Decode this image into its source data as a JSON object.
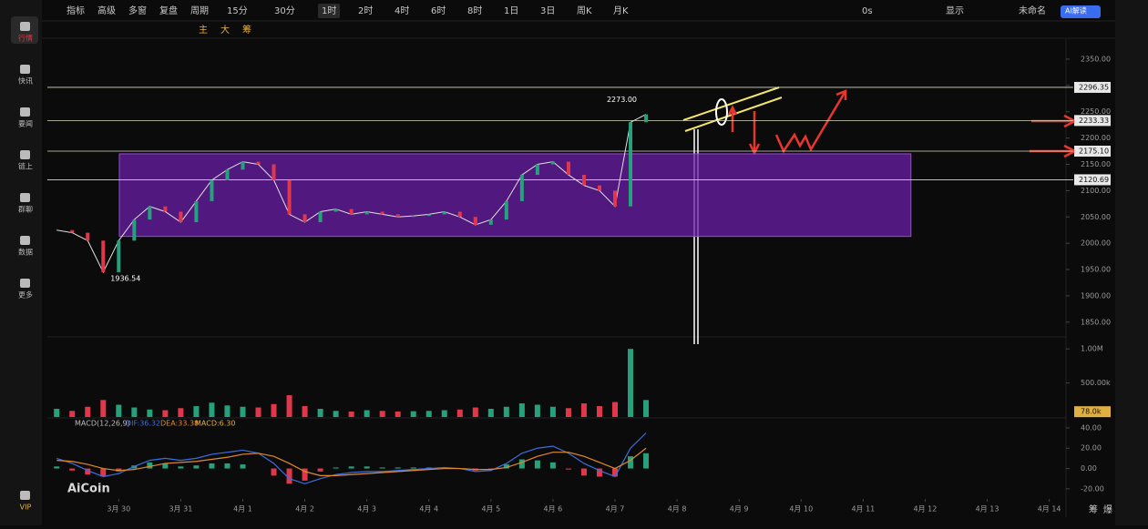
{
  "sidebar": [
    "行情",
    "快讯",
    "要闻",
    "链上",
    "群聊",
    "数据",
    "更多",
    "VIP"
  ],
  "toolbar": {
    "left": [
      "指标",
      "高级",
      "多窗",
      "复盘",
      "周期",
      "15分",
      "30分",
      "1时",
      "2时",
      "4时",
      "6时",
      "8时",
      "1日",
      "3日",
      "周K",
      "月K"
    ],
    "right": [
      "0s",
      "显示",
      "未命名",
      "AI解读"
    ]
  },
  "drawing_tools": [
    "主",
    "大",
    "筹"
  ],
  "watermark": "AiCoin",
  "bottom_right": [
    "筹",
    "爆"
  ],
  "chart_data": [
    {
      "type": "line",
      "color": "#e0e0e0",
      "up_color": "#26a17b",
      "down_color": "#e0384a",
      "x": [
        -1,
        -0.75,
        -0.5,
        -0.25,
        0,
        0.25,
        0.5,
        0.75,
        1,
        1.25,
        1.5,
        1.75,
        2,
        2.25,
        2.5,
        2.75,
        3,
        3.25,
        3.5,
        3.75,
        4,
        4.25,
        4.5,
        4.75,
        5,
        5.25,
        5.5,
        5.75,
        6,
        6.25,
        6.5,
        6.75,
        7,
        7.25,
        7.5,
        7.75,
        8,
        8.25,
        8.5
      ],
      "values": [
        2025,
        2020,
        2005,
        1945,
        2005,
        2045,
        2070,
        2060,
        2040,
        2080,
        2120,
        2140,
        2155,
        2150,
        2120,
        2055,
        2040,
        2060,
        2065,
        2055,
        2060,
        2055,
        2050,
        2052,
        2055,
        2060,
        2050,
        2035,
        2045,
        2080,
        2130,
        2150,
        2155,
        2130,
        2110,
        2100,
        2070,
        2230,
        2245
      ],
      "xlim": [
        -1.15,
        15.27
      ],
      "ylim": [
        1822,
        2388
      ],
      "xticks": [
        {
          "value": 0,
          "label": "3月 30"
        },
        {
          "value": 1,
          "label": "3月 31"
        },
        {
          "value": 2,
          "label": "4月 1"
        },
        {
          "value": 3,
          "label": "4月 2"
        },
        {
          "value": 4,
          "label": "4月 3"
        },
        {
          "value": 5,
          "label": "4月 4"
        },
        {
          "value": 6,
          "label": "4月 5"
        },
        {
          "value": 7,
          "label": "4月 6"
        },
        {
          "value": 8,
          "label": "4月 7"
        },
        {
          "value": 9,
          "label": "4月 8"
        },
        {
          "value": 10,
          "label": "4月 9"
        },
        {
          "value": 11,
          "label": "4月 10"
        },
        {
          "value": 12,
          "label": "4月 11"
        },
        {
          "value": 13,
          "label": "4月 12"
        },
        {
          "value": 14,
          "label": "4月 13"
        },
        {
          "value": 15,
          "label": "4月 14"
        }
      ],
      "yticks": [
        {
          "value": 1850,
          "label": "1850.00"
        },
        {
          "value": 1900,
          "label": "1900.00"
        },
        {
          "value": 1950,
          "label": "1950.00"
        },
        {
          "value": 2000,
          "label": "2000.00"
        },
        {
          "value": 2050,
          "label": "2050.00"
        },
        {
          "value": 2100,
          "label": "2100.00"
        },
        {
          "value": 2150,
          "label": "2150.00"
        },
        {
          "value": 2200,
          "label": "2200.00"
        },
        {
          "value": 2250,
          "label": "2250.00"
        },
        {
          "value": 2300,
          "label": "2300.00"
        },
        {
          "value": 2350,
          "label": "2350.00"
        }
      ],
      "levels": [
        {
          "value": 2296.35,
          "label": "2296.35"
        },
        {
          "value": 2233.33,
          "label": "2233.33"
        },
        {
          "value": 2175.1,
          "label": "2175.10"
        },
        {
          "value": 2120.69,
          "label": "2120.69"
        }
      ],
      "high": {
        "value": 2273.0,
        "label": "2273.00"
      },
      "low": {
        "value": 1936.54,
        "label": "1936.54"
      },
      "range_box": {
        "xlim": [
          0.01,
          12.77
        ],
        "ylim": [
          2013,
          2170
        ],
        "color": "#6a1fa8"
      }
    },
    {
      "type": "bar",
      "values": [
        120000,
        90000,
        150000,
        250000,
        180000,
        140000,
        110000,
        100000,
        130000,
        160000,
        210000,
        170000,
        150000,
        140000,
        190000,
        320000,
        160000,
        120000,
        90000,
        80000,
        100000,
        90000,
        80000,
        85000,
        90000,
        100000,
        110000,
        140000,
        120000,
        150000,
        200000,
        180000,
        150000,
        130000,
        200000,
        160000,
        220000,
        1000000,
        250000
      ],
      "ylim": [
        0,
        1150000
      ],
      "yticks": [
        {
          "value": 500000,
          "label": "500.00k"
        },
        {
          "value": 1000000,
          "label": "1.00M"
        }
      ],
      "current": {
        "value": 78000,
        "label": "78.0k"
      }
    },
    {
      "type": "macd",
      "title": "MACD(12,26,9)",
      "dif_label": "DIF:36.32",
      "dea_label": "DEA:33.38",
      "macd_label": "MACD:6.30",
      "dif": [
        10,
        5,
        -2,
        -8,
        -5,
        2,
        8,
        10,
        8,
        10,
        14,
        16,
        18,
        15,
        5,
        -10,
        -15,
        -10,
        -6,
        -4,
        -3,
        -3,
        -2,
        -1,
        0,
        1,
        0,
        -3,
        -2,
        5,
        15,
        20,
        22,
        15,
        5,
        -2,
        -8,
        20,
        35
      ],
      "dea": [
        8,
        7,
        4,
        0,
        -2,
        -1,
        2,
        5,
        6,
        7,
        9,
        11,
        14,
        15,
        12,
        5,
        -3,
        -7,
        -7,
        -6,
        -5,
        -4,
        -3,
        -2,
        -1,
        0,
        0,
        -1,
        -1,
        1,
        6,
        12,
        16,
        16,
        12,
        6,
        0,
        8,
        20
      ],
      "hist": [
        2,
        -2,
        -6,
        -8,
        -3,
        3,
        6,
        5,
        2,
        3,
        5,
        5,
        4,
        0,
        -7,
        -15,
        -12,
        -3,
        1,
        2,
        2,
        1,
        1,
        1,
        1,
        1,
        0,
        -2,
        -1,
        4,
        9,
        8,
        6,
        -1,
        -7,
        -8,
        -8,
        12,
        15
      ],
      "dif_color": "#3b6fe0",
      "dea_color": "#e08a2a",
      "ylim": [
        -30,
        48
      ],
      "yticks": [
        {
          "value": 40,
          "label": "40.00"
        },
        {
          "value": 20,
          "label": "20.00"
        },
        {
          "value": 0,
          "label": "0.00"
        },
        {
          "value": -20,
          "label": "-20.00"
        }
      ]
    }
  ]
}
